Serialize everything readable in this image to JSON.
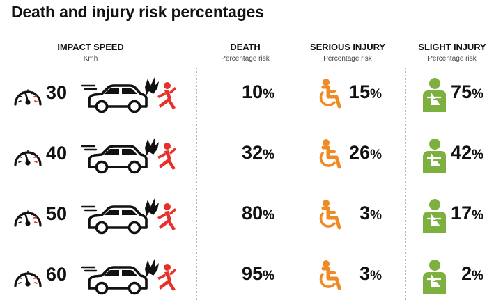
{
  "title": "Death and injury risk percentages",
  "headers": {
    "impact_speed": {
      "label": "IMPACT SPEED",
      "sub": "Kmh"
    },
    "death": {
      "label": "DEATH",
      "sub": "Percentage risk"
    },
    "serious": {
      "label": "SERIOUS INJURY",
      "sub": "Percentage risk"
    },
    "slight": {
      "label": "SLIGHT INJURY",
      "sub": "Percentage risk"
    }
  },
  "percent_symbol": "%",
  "rows": [
    {
      "speed": "30",
      "death": "10",
      "serious": "15",
      "slight": "75"
    },
    {
      "speed": "40",
      "death": "32",
      "serious": "26",
      "slight": "42"
    },
    {
      "speed": "50",
      "death": "80",
      "serious": "3",
      "slight": "17"
    },
    {
      "speed": "60",
      "death": "95",
      "serious": "3",
      "slight": "2"
    }
  ],
  "icons": {
    "gauge": "speedometer-icon",
    "impact": "car-hitting-pedestrian-icon",
    "serious": "wheelchair-icon",
    "slight": "arm-sling-icon"
  },
  "colors": {
    "pedestrian": "#e8302a",
    "serious": "#f08a24",
    "slight": "#7db03f",
    "text": "#111111"
  }
}
